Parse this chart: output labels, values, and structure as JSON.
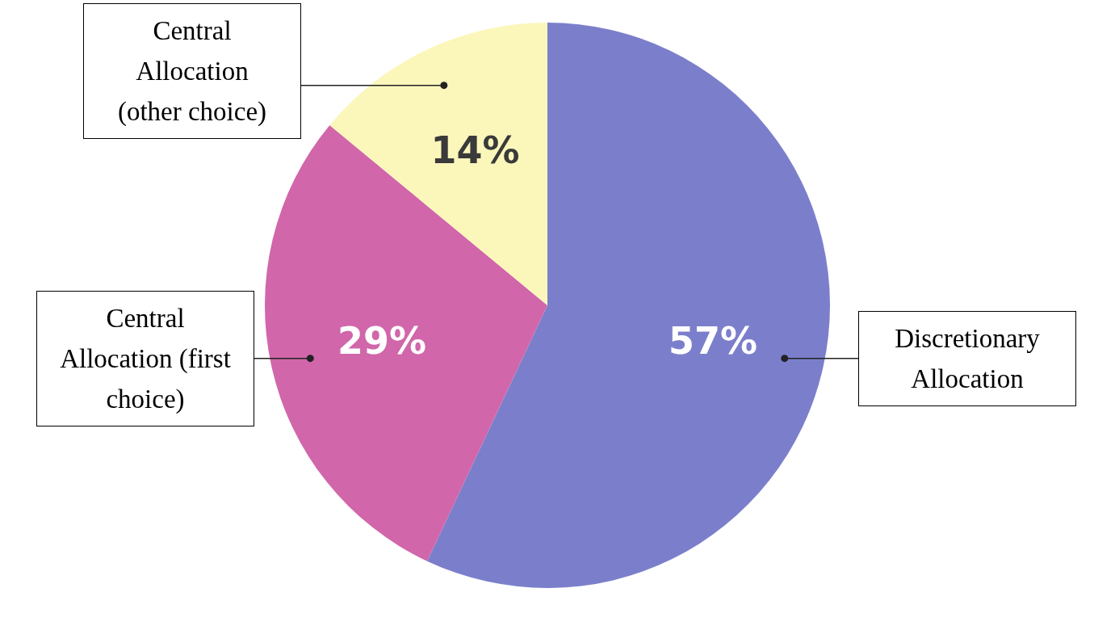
{
  "chart_data": {
    "type": "pie",
    "categories": [
      "Discretionary Allocation",
      "Central Allocation (first choice)",
      "Central Allocation (other choice)"
    ],
    "values": [
      57,
      29,
      14
    ],
    "colors": [
      "#7b7fcb",
      "#d166aa",
      "#fbf7bb"
    ],
    "value_labels": [
      "57%",
      "29%",
      "14%"
    ]
  }
}
